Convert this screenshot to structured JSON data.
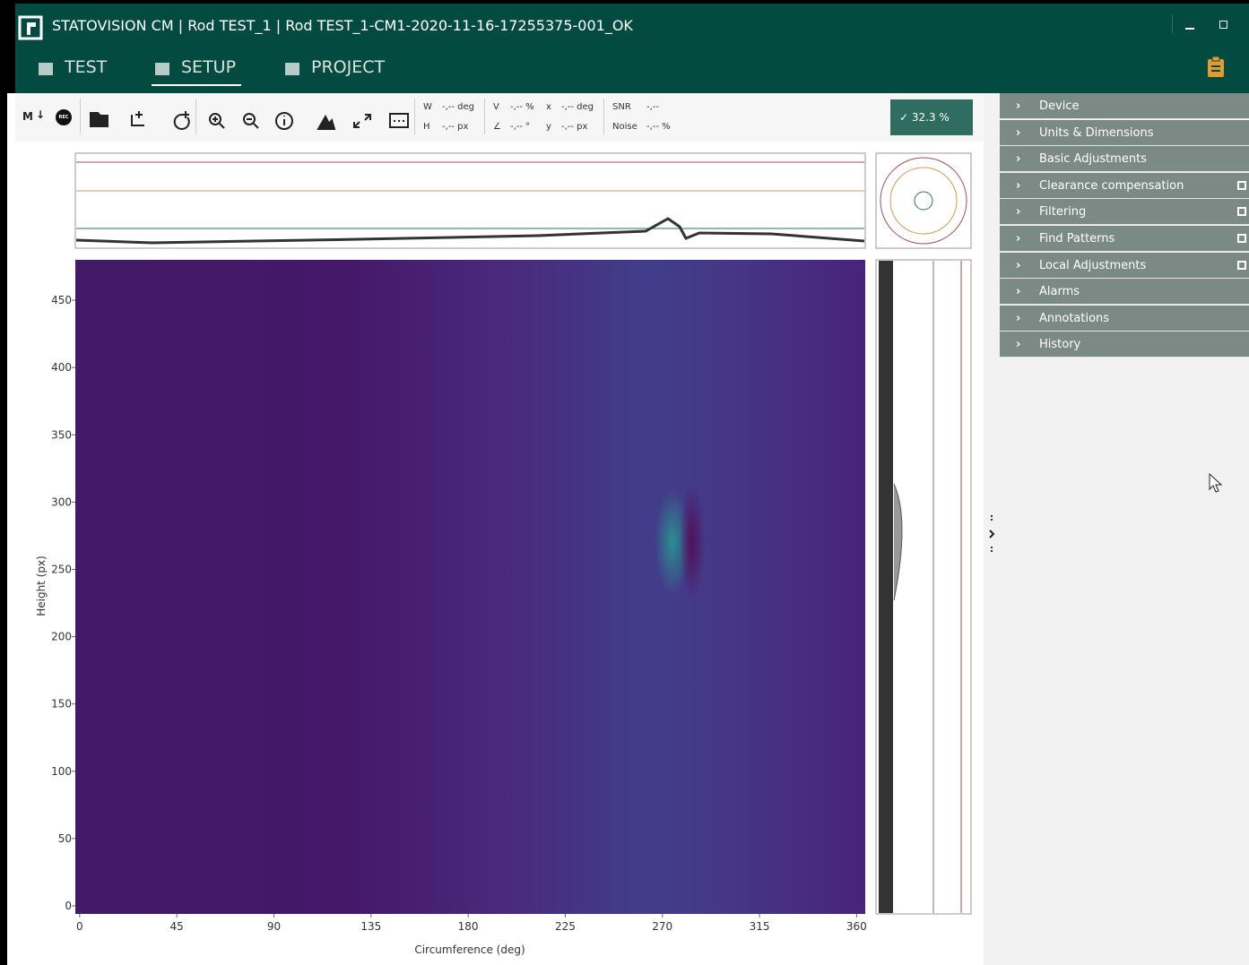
{
  "window": {
    "title": "STATOVISION CM | Rod TEST_1 | Rod TEST_1-CM1-2020-11-16-17255375-001_OK"
  },
  "tabs": [
    "TEST",
    "SETUP",
    "PROJECT"
  ],
  "toolbar": {
    "memory": "M",
    "record": "REC",
    "readouts": [
      {
        "label": "W",
        "value": "-,-- deg"
      },
      {
        "label": "H",
        "value": "-,-- px"
      },
      {
        "label": "V",
        "value": "-,-- %"
      },
      {
        "label": "∠",
        "value": "-,-- °"
      },
      {
        "label": "x",
        "value": "-,-- deg"
      },
      {
        "label": "y",
        "value": "-,-- px"
      },
      {
        "label": "SNR",
        "value": "-,--"
      },
      {
        "label": "Noise",
        "value": "-,-- %"
      }
    ],
    "quality": "32.3 %"
  },
  "panel": {
    "items": [
      "Device",
      "Units & Dimensions",
      "Basic Adjustments",
      "Clearance compensation",
      "Filtering",
      "Find Patterns",
      "Local Adjustments",
      "Alarms",
      "Annotations",
      "History"
    ]
  },
  "heatmap": {
    "xlabel": "Circumference (deg)",
    "ylabel": "Height (px)",
    "xlim": [
      -2,
      364
    ],
    "ylim": [
      -6,
      480
    ],
    "xticks": [
      0,
      45,
      90,
      135,
      180,
      225,
      270,
      315,
      360
    ],
    "yticks": [
      0,
      50,
      100,
      150,
      200,
      250,
      300,
      350,
      400,
      450
    ]
  }
}
